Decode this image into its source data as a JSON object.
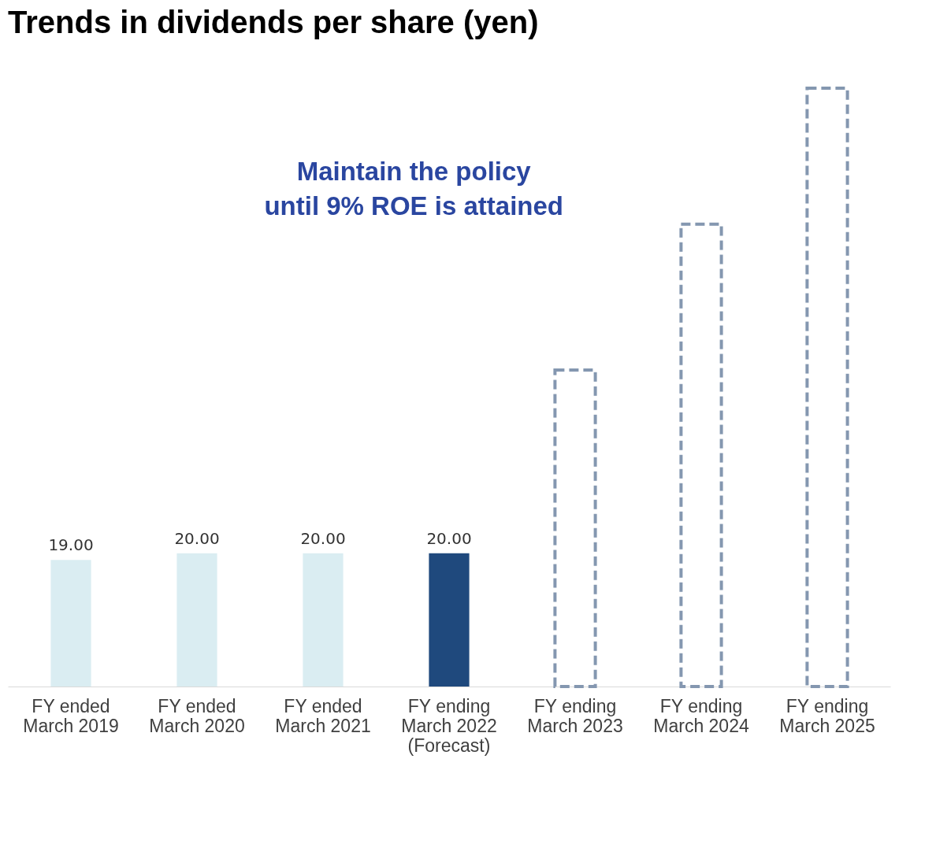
{
  "chart_data": {
    "type": "bar",
    "title": "Trends in dividends per share (yen)",
    "categories": [
      "FY ended\nMarch 2019",
      "FY ended\nMarch 2020",
      "FY ended\nMarch 2021",
      "FY ending\nMarch 2022\n(Forecast)",
      "FY ending\nMarch 2023",
      "FY ending\nMarch 2024",
      "FY ending\nMarch 2025"
    ],
    "series": [
      {
        "colors": [
          "#daedf2",
          "#daedf2",
          "#daedf2",
          "#1f497d",
          null,
          null,
          null
        ],
        "values": [
          19.0,
          20.0,
          20.0,
          20.0,
          null,
          null,
          null
        ],
        "value_labels": [
          "19.00",
          "20.00",
          "20.00",
          "20.00",
          null,
          null,
          null
        ]
      },
      {
        "color": "#8497b0",
        "line_style": "dashed",
        "values": [
          null,
          null,
          null,
          null,
          47.5,
          69.4,
          89.8
        ]
      }
    ],
    "annotations": [
      "Maintain the policy\nuntil 9% ROE is attained"
    ]
  }
}
